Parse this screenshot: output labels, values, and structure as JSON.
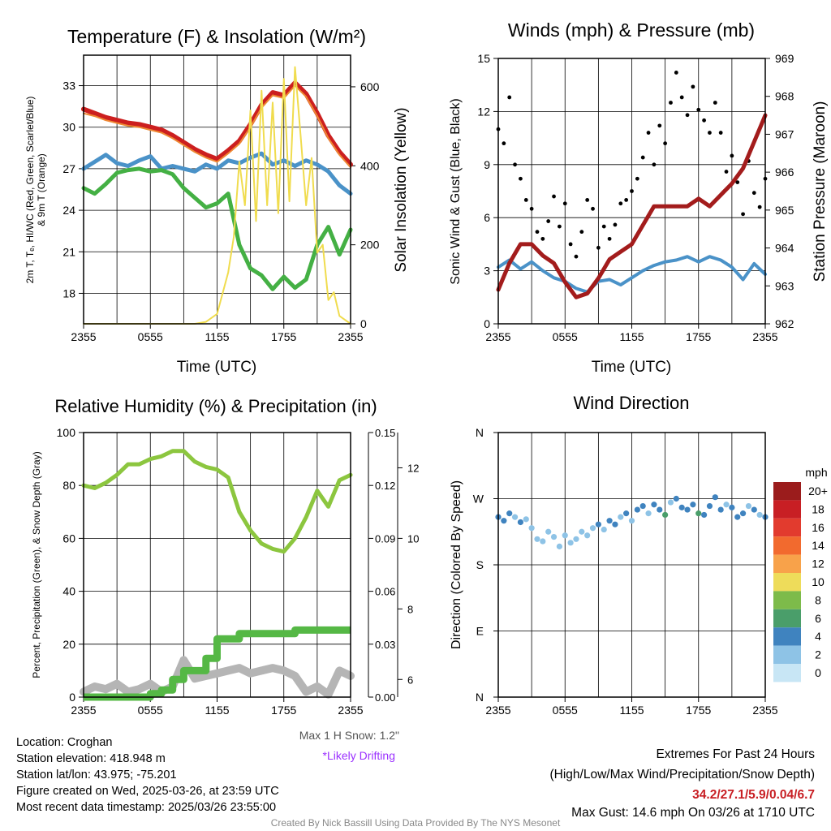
{
  "charts": {
    "temp": {
      "title": "Temperature (F) & Insolation (W/m²)",
      "xlabel": "Time (UTC)",
      "ylabel_left_1": "2m T, Tₑ, HI/WC (Red, Green, Scarlet/Blue)",
      "ylabel_left_2": "& 9m T (Orange)",
      "ylabel_right": "Solar Insolation (Yellow)"
    },
    "wind": {
      "title": "Winds (mph) & Pressure (mb)",
      "xlabel": "Time (UTC)",
      "ylabel_left": "Sonic Wind & Gust (Blue, Black)",
      "ylabel_right": "Station Pressure (Maroon)"
    },
    "rh": {
      "title": "Relative Humidity (%) & Precipitation (in)",
      "ylabel_left": "Percent, Precipitation (Green), & Snow Depth (Gray)",
      "max_snow": "Max 1 H Snow: 1.2\"",
      "drifting": "*Likely Drifting"
    },
    "wdir": {
      "title": "Wind Direction",
      "ylabel_left": "Direction (Colored By Speed)",
      "colorbar_title": "mph",
      "colorbar_labels": [
        "20+",
        "18",
        "16",
        "14",
        "12",
        "10",
        "8",
        "6",
        "4",
        "2",
        "0"
      ],
      "colorbar_colors": [
        "#9b1c1c",
        "#c81f24",
        "#e23b2e",
        "#f26a2e",
        "#f8a24a",
        "#eedc5a",
        "#7dbb4a",
        "#4a9e6a",
        "#3f83bf",
        "#8ec3e6",
        "#c8e6f5"
      ]
    }
  },
  "chart_data": [
    {
      "type": "line",
      "panel": "temp",
      "x_ticks": [
        "2355",
        "0555",
        "1155",
        "1755",
        "2355"
      ],
      "y_left_ticks": [
        "18",
        "21",
        "24",
        "27",
        "30",
        "33"
      ],
      "y_left_lim": [
        15.8,
        35.2
      ],
      "y_right_ticks": [
        "0",
        "200",
        "400",
        "600"
      ],
      "y_right_lim": [
        0,
        680
      ],
      "series": [
        {
          "color": "#cc1f1f",
          "axis": "left",
          "x": [
            0,
            1,
            2,
            3,
            4,
            5,
            6,
            7,
            8,
            9,
            10,
            11,
            12,
            13,
            14,
            15,
            16,
            17,
            18,
            19,
            20,
            21,
            22,
            23,
            24
          ],
          "values": [
            31.3,
            31.0,
            30.7,
            30.5,
            30.3,
            30.2,
            30.0,
            29.8,
            29.4,
            28.9,
            28.4,
            28.0,
            27.7,
            28.3,
            29.0,
            30.2,
            31.6,
            32.5,
            32.3,
            33.2,
            32.4,
            31.0,
            29.4,
            28.2,
            27.3
          ]
        },
        {
          "color": "#ee8833",
          "axis": "left",
          "x": [
            0,
            1,
            2,
            3,
            4,
            5,
            6,
            7,
            8,
            9,
            10,
            11,
            12,
            13,
            14,
            15,
            16,
            17,
            18,
            19,
            20,
            21,
            22,
            23,
            24
          ],
          "values": [
            31.0,
            30.8,
            30.5,
            30.3,
            30.1,
            30.0,
            29.8,
            29.6,
            29.2,
            28.7,
            28.2,
            27.8,
            27.5,
            28.1,
            28.8,
            30.0,
            31.4,
            32.3,
            32.1,
            33.0,
            32.2,
            30.8,
            29.2,
            28.0,
            27.1
          ]
        },
        {
          "color": "#4a92c8",
          "axis": "left",
          "x": [
            0,
            1,
            2,
            3,
            4,
            5,
            6,
            7,
            8,
            9,
            10,
            11,
            12,
            13,
            14,
            15,
            16,
            17,
            18,
            19,
            20,
            21,
            22,
            23,
            24
          ],
          "values": [
            27.0,
            27.5,
            28.0,
            27.4,
            27.2,
            27.6,
            27.9,
            27.0,
            27.2,
            27.0,
            26.8,
            27.3,
            27.0,
            27.6,
            27.4,
            27.8,
            28.1,
            27.3,
            27.6,
            27.2,
            27.6,
            27.3,
            26.8,
            25.8,
            25.2
          ]
        },
        {
          "color": "#44b044",
          "axis": "left",
          "x": [
            0,
            1,
            2,
            3,
            4,
            5,
            6,
            7,
            8,
            9,
            10,
            11,
            12,
            13,
            14,
            15,
            16,
            17,
            18,
            19,
            20,
            21,
            22,
            23,
            24
          ],
          "values": [
            25.6,
            25.2,
            25.9,
            26.7,
            26.9,
            27.0,
            26.8,
            26.9,
            26.6,
            25.6,
            24.9,
            24.2,
            24.5,
            25.2,
            21.5,
            19.8,
            19.3,
            18.3,
            19.2,
            18.4,
            19.0,
            21.5,
            22.8,
            20.8,
            22.6
          ]
        },
        {
          "color": "#f0dc4e",
          "axis": "right",
          "x": [
            0,
            2,
            4,
            6,
            8,
            9,
            10,
            11,
            12,
            13,
            13.5,
            14,
            14.5,
            15,
            15.5,
            16,
            16.5,
            17,
            17.5,
            18,
            18.5,
            19,
            19.5,
            20,
            20.5,
            21,
            21.5,
            22,
            22.5,
            23,
            24
          ],
          "values": [
            0,
            0,
            0,
            0,
            0,
            0,
            0,
            5,
            25,
            130,
            220,
            410,
            300,
            540,
            260,
            590,
            300,
            560,
            280,
            620,
            310,
            650,
            480,
            300,
            420,
            180,
            200,
            60,
            80,
            20,
            0
          ]
        }
      ]
    },
    {
      "type": "line",
      "panel": "wind",
      "x_ticks": [
        "2355",
        "0555",
        "1155",
        "1755",
        "2355"
      ],
      "y_left_ticks": [
        "0",
        "3",
        "6",
        "9",
        "12",
        "15"
      ],
      "y_left_lim": [
        0,
        15
      ],
      "y_right_ticks": [
        "962",
        "963",
        "964",
        "965",
        "966",
        "967",
        "968",
        "969"
      ],
      "y_right_lim": [
        962,
        969
      ],
      "series": [
        {
          "name": "Sonic wind",
          "color": "#4a92c8",
          "x": [
            0,
            1,
            2,
            3,
            4,
            5,
            6,
            7,
            8,
            9,
            10,
            11,
            12,
            13,
            14,
            15,
            16,
            17,
            18,
            19,
            20,
            21,
            22,
            23,
            24
          ],
          "values": [
            3.2,
            3.6,
            3.1,
            3.5,
            3.0,
            2.6,
            2.4,
            2.0,
            1.8,
            2.4,
            2.5,
            2.2,
            2.6,
            3.0,
            3.3,
            3.5,
            3.6,
            3.8,
            3.5,
            3.8,
            3.6,
            3.2,
            2.5,
            3.4,
            2.8
          ]
        },
        {
          "name": "Station pressure",
          "color": "#a31c1c",
          "x": [
            0,
            1,
            2,
            3,
            4,
            5,
            6,
            7,
            8,
            9,
            10,
            11,
            12,
            13,
            14,
            15,
            16,
            17,
            18,
            19,
            20,
            21,
            22,
            23,
            24
          ],
          "values": [
            962.9,
            963.6,
            964.1,
            964.1,
            963.8,
            963.6,
            963.1,
            962.7,
            962.8,
            963.2,
            963.7,
            963.9,
            964.1,
            964.6,
            965.1,
            965.1,
            965.1,
            965.1,
            965.3,
            965.1,
            965.4,
            965.7,
            966.1,
            966.8,
            967.5
          ]
        },
        {
          "name": "Gust",
          "type": "scatter",
          "color": "#000000",
          "x": [
            0,
            0.5,
            1,
            1.5,
            2,
            2.5,
            3,
            3.5,
            4,
            4.5,
            5,
            5.5,
            6,
            6.5,
            7,
            7.5,
            8,
            8.5,
            9,
            9.5,
            10,
            10.5,
            11,
            11.5,
            12,
            12.5,
            13,
            13.5,
            14,
            14.5,
            15,
            15.5,
            16,
            16.5,
            17,
            17.5,
            18,
            18.5,
            19,
            19.5,
            20,
            20.5,
            21,
            21.5,
            22,
            22.5,
            23,
            23.5,
            24
          ],
          "values": [
            11.0,
            10.2,
            12.8,
            9.0,
            8.2,
            7.0,
            6.5,
            5.2,
            4.8,
            5.8,
            7.2,
            5.5,
            6.8,
            4.5,
            3.8,
            5.2,
            7.0,
            6.5,
            4.3,
            5.5,
            4.8,
            5.6,
            6.8,
            7.0,
            7.5,
            8.2,
            9.4,
            10.8,
            9.0,
            11.2,
            10.2,
            12.5,
            14.2,
            12.8,
            11.8,
            13.4,
            12.1,
            11.5,
            10.8,
            12.5,
            10.8,
            8.6,
            9.5,
            8.0,
            6.2,
            9.2,
            7.4,
            6.6,
            8.2
          ]
        }
      ]
    },
    {
      "type": "line",
      "panel": "rh",
      "x_ticks": [
        "2355",
        "0555",
        "1155",
        "1755",
        "2355"
      ],
      "y_left_ticks": [
        "0",
        "20",
        "40",
        "60",
        "80",
        "100"
      ],
      "y_left_lim": [
        0,
        100
      ],
      "y_right1_ticks": [
        "0.00",
        "0.03",
        "0.06",
        "0.09",
        "0.12",
        "0.15"
      ],
      "y_right1_lim": [
        0,
        0.15
      ],
      "y_right2_ticks": [
        "6",
        "8",
        "10",
        "12"
      ],
      "y_right2_lim": [
        5.5,
        13
      ],
      "series": [
        {
          "name": "RH",
          "color": "#8cc63f",
          "axis": "left",
          "x": [
            0,
            1,
            2,
            3,
            4,
            5,
            6,
            7,
            8,
            9,
            10,
            11,
            12,
            13,
            14,
            15,
            16,
            17,
            18,
            19,
            20,
            21,
            22,
            23,
            24
          ],
          "values": [
            80,
            79,
            81,
            84,
            88,
            88,
            90,
            91,
            93,
            93,
            89,
            87,
            86,
            83,
            70,
            63,
            58,
            56,
            55,
            60,
            68,
            78,
            72,
            82,
            84
          ]
        },
        {
          "name": "Precipitation",
          "color": "#55b845",
          "axis": "right1",
          "x": [
            0,
            1,
            2,
            3,
            4,
            5,
            6,
            7,
            8,
            9,
            10,
            11,
            12,
            13,
            14,
            15,
            16,
            17,
            18,
            19,
            20,
            21,
            22,
            23,
            24
          ],
          "values": [
            0.0,
            0.0,
            0.0,
            0.0,
            0.0,
            0.0,
            0.002,
            0.004,
            0.01,
            0.015,
            0.015,
            0.022,
            0.033,
            0.033,
            0.036,
            0.036,
            0.036,
            0.036,
            0.036,
            0.038,
            0.038,
            0.038,
            0.038,
            0.038,
            0.038
          ]
        },
        {
          "name": "Snow depth",
          "color": "#b5b5b5",
          "axis": "left",
          "x": [
            0,
            1,
            2,
            3,
            4,
            5,
            6,
            7,
            8,
            9,
            10,
            11,
            12,
            13,
            14,
            15,
            16,
            17,
            18,
            19,
            20,
            21,
            22,
            23,
            24
          ],
          "values": [
            2,
            4,
            3,
            5,
            2,
            3,
            5,
            2,
            4,
            14,
            7,
            8,
            9,
            10,
            11,
            9,
            10,
            11,
            10,
            8,
            2,
            4,
            1,
            10,
            8
          ]
        }
      ]
    },
    {
      "type": "scatter",
      "panel": "wdir",
      "x_ticks": [
        "2355",
        "0555",
        "1155",
        "1755",
        "2355"
      ],
      "y_ticks": [
        "N",
        "E",
        "S",
        "W",
        "N"
      ],
      "y_lim": [
        0,
        360
      ],
      "series": [
        {
          "name": "Direction",
          "x": [
            0,
            0.5,
            1,
            1.5,
            2,
            2.5,
            3,
            3.5,
            4,
            4.5,
            5,
            5.5,
            6,
            6.5,
            7,
            7.5,
            8,
            8.5,
            9,
            9.5,
            10,
            10.5,
            11,
            11.5,
            12,
            12.5,
            13,
            13.5,
            14,
            14.5,
            15,
            15.5,
            16,
            16.5,
            17,
            17.5,
            18,
            18.5,
            19,
            19.5,
            20,
            20.5,
            21,
            21.5,
            22,
            22.5,
            23,
            23.5,
            24
          ],
          "values": [
            245,
            240,
            250,
            245,
            238,
            242,
            230,
            215,
            212,
            225,
            218,
            205,
            220,
            210,
            215,
            225,
            220,
            230,
            235,
            228,
            240,
            235,
            245,
            250,
            240,
            255,
            260,
            250,
            262,
            255,
            248,
            265,
            270,
            258,
            255,
            262,
            250,
            248,
            260,
            272,
            255,
            262,
            258,
            245,
            250,
            260,
            255,
            248,
            245
          ],
          "speed": [
            3,
            3,
            4,
            2,
            3,
            2,
            2,
            1,
            2,
            1,
            1,
            1,
            2,
            1,
            1,
            2,
            2,
            2,
            3,
            2,
            3,
            3,
            2,
            3,
            2,
            3,
            3,
            2,
            4,
            3,
            6,
            2,
            4,
            4,
            3,
            4,
            5,
            3,
            4,
            3,
            4,
            2,
            4,
            3,
            3,
            2,
            3,
            2,
            3
          ]
        }
      ]
    }
  ],
  "info": {
    "location": "Location: Croghan",
    "elevation": "Station elevation: 418.948 m",
    "latlon": "Station lat/lon: 43.975; -75.201",
    "created": "Figure created on Wed, 2025-03-26, at 23:59 UTC",
    "recent": "Most recent data timestamp: 2025/03/26 23:55:00",
    "extremes_title": "Extremes For Past 24 Hours",
    "extremes_sub": "(High/Low/Max Wind/Precipitation/Snow Depth)",
    "extremes_values": "34.2/27.1/5.9/0.04/6.7",
    "max_gust": "Max Gust: 14.6 mph On 03/26 at 1710 UTC",
    "credit": "Created By Nick Bassill Using Data Provided By The NYS Mesonet"
  }
}
